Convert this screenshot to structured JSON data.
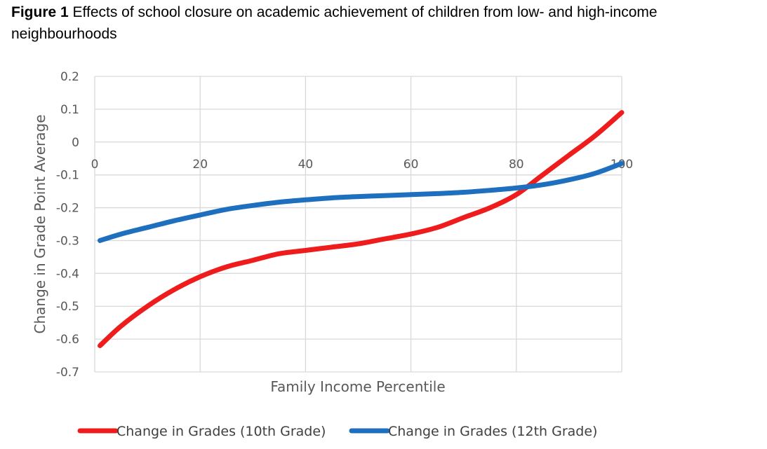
{
  "caption": {
    "label": "Figure 1",
    "text": "Effects of school closure on academic achievement of children from low- and high-income neighbourhoods"
  },
  "chart_data": {
    "type": "line",
    "title": "",
    "xlabel": "Family Income Percentile",
    "ylabel": "Change in Grade Point Average",
    "xlim": [
      0,
      100
    ],
    "ylim": [
      -0.7,
      0.2
    ],
    "xticks": [
      0,
      20,
      40,
      60,
      80,
      100
    ],
    "xtick_labels": [
      "0",
      "20",
      "40",
      "60",
      "80",
      "100"
    ],
    "yticks": [
      0.2,
      0.1,
      0,
      -0.1,
      -0.2,
      -0.3,
      -0.4,
      -0.5,
      -0.6,
      -0.7
    ],
    "ytick_labels": [
      "0.2",
      "0.1",
      "0",
      "-0.1",
      "-0.2",
      "-0.3",
      "-0.4",
      "-0.5",
      "-0.6",
      "-0.7"
    ],
    "grid": true,
    "legend_position": "bottom",
    "series": [
      {
        "name": "Change in Grades (10th Grade)",
        "color": "#ee1c1c",
        "x": [
          1,
          5,
          10,
          15,
          20,
          25,
          30,
          35,
          40,
          45,
          50,
          55,
          60,
          65,
          70,
          75,
          80,
          85,
          90,
          95,
          100
        ],
        "y": [
          -0.62,
          -0.56,
          -0.5,
          -0.45,
          -0.41,
          -0.38,
          -0.36,
          -0.34,
          -0.33,
          -0.32,
          -0.31,
          -0.295,
          -0.28,
          -0.26,
          -0.23,
          -0.2,
          -0.16,
          -0.1,
          -0.04,
          0.02,
          0.09
        ]
      },
      {
        "name": "Change in Grades (12th Grade)",
        "color": "#1f6fbf",
        "x": [
          1,
          5,
          10,
          15,
          20,
          25,
          30,
          35,
          40,
          45,
          50,
          55,
          60,
          65,
          70,
          75,
          80,
          85,
          90,
          95,
          100
        ],
        "y": [
          -0.3,
          -0.28,
          -0.26,
          -0.24,
          -0.222,
          -0.205,
          -0.193,
          -0.183,
          -0.176,
          -0.17,
          -0.166,
          -0.163,
          -0.16,
          -0.157,
          -0.153,
          -0.147,
          -0.14,
          -0.13,
          -0.115,
          -0.095,
          -0.065
        ]
      }
    ]
  }
}
